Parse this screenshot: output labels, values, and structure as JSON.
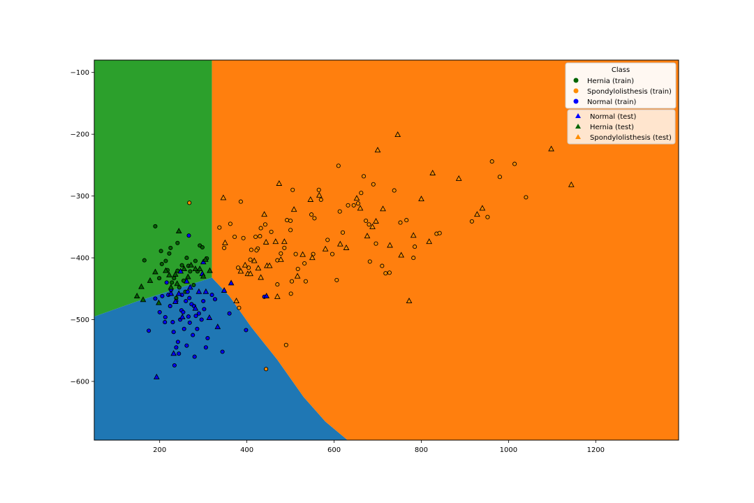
{
  "colors": {
    "normal": "#1f77b4",
    "hernia": "#2ca02c",
    "spondylolisthesis": "#ff7f0e",
    "marker_hernia": "#006400",
    "marker_spondy": "#ff8c00",
    "marker_normal": "#0000ff"
  },
  "chart_data": {
    "type": "scatter",
    "title": "",
    "xlabel": "",
    "ylabel": "",
    "xlim": [
      50,
      1390
    ],
    "ylim": [
      -695,
      -80
    ],
    "xticks": [
      200,
      400,
      600,
      800,
      1000,
      1200
    ],
    "yticks": [
      -100,
      -200,
      -300,
      -400,
      -500,
      -600
    ],
    "grid": false,
    "legend_placement": "top-right",
    "legend_title": "Class",
    "legend_train": [
      "Hernia (train)",
      "Spondylolisthesis (train)",
      "Normal (train)"
    ],
    "legend_test": [
      "Normal (test)",
      "Hernia (test)",
      "Spondylolisthesis (test)"
    ],
    "decision_regions": [
      {
        "class": "Hernia",
        "polygon": [
          [
            50,
            -80
          ],
          [
            320,
            -80
          ],
          [
            320,
            -432
          ],
          [
            150,
            -470
          ],
          [
            50,
            -495
          ]
        ]
      },
      {
        "class": "Normal",
        "polygon": [
          [
            50,
            -495
          ],
          [
            150,
            -470
          ],
          [
            320,
            -432
          ],
          [
            360,
            -462
          ],
          [
            410,
            -512
          ],
          [
            470,
            -565
          ],
          [
            530,
            -625
          ],
          [
            580,
            -665
          ],
          [
            631,
            -695
          ],
          [
            50,
            -695
          ]
        ]
      },
      {
        "class": "Spondylolisthesis",
        "polygon": [
          [
            320,
            -80
          ],
          [
            1390,
            -80
          ],
          [
            1390,
            -695
          ],
          [
            631,
            -695
          ],
          [
            580,
            -665
          ],
          [
            530,
            -625
          ],
          [
            470,
            -565
          ],
          [
            410,
            -512
          ],
          [
            360,
            -462
          ],
          [
            320,
            -432
          ]
        ]
      }
    ],
    "series": [
      {
        "name": "Hernia (train)",
        "marker": "circle",
        "points": [
          [
            190,
            -349
          ],
          [
            165,
            -404
          ],
          [
            203,
            -389
          ],
          [
            214,
            -405
          ],
          [
            225,
            -384
          ],
          [
            241,
            -376
          ],
          [
            262,
            -400
          ],
          [
            282,
            -405
          ],
          [
            292,
            -380
          ],
          [
            218,
            -420
          ],
          [
            233,
            -433
          ],
          [
            251,
            -412
          ],
          [
            270,
            -422
          ],
          [
            245,
            -448
          ],
          [
            228,
            -440
          ],
          [
            205,
            -410
          ],
          [
            298,
            -383
          ],
          [
            278,
            -444
          ],
          [
            259,
            -455
          ],
          [
            222,
            -393
          ],
          [
            241,
            -421
          ],
          [
            308,
            -401
          ],
          [
            287,
            -422
          ],
          [
            199,
            -433
          ],
          [
            238,
            -465
          ],
          [
            255,
            -437
          ],
          [
            266,
            -413
          ]
        ]
      },
      {
        "name": "Spondylolisthesis (train)",
        "marker": "circle",
        "points": [
          [
            268,
            -311
          ],
          [
            337,
            -351
          ],
          [
            348,
            -384
          ],
          [
            362,
            -345
          ],
          [
            386,
            -309
          ],
          [
            392,
            -368
          ],
          [
            372,
            -366
          ],
          [
            410,
            -387
          ],
          [
            425,
            -385
          ],
          [
            432,
            -352
          ],
          [
            442,
            -346
          ],
          [
            456,
            -358
          ],
          [
            470,
            -404
          ],
          [
            478,
            -393
          ],
          [
            486,
            -384
          ],
          [
            492,
            -339
          ],
          [
            500,
            -340
          ],
          [
            505,
            -290
          ],
          [
            517,
            -418
          ],
          [
            532,
            -409
          ],
          [
            548,
            -330
          ],
          [
            555,
            -336
          ],
          [
            565,
            -290
          ],
          [
            570,
            -306
          ],
          [
            585,
            -371
          ],
          [
            596,
            -394
          ],
          [
            610,
            -251
          ],
          [
            613,
            -325
          ],
          [
            620,
            -359
          ],
          [
            632,
            -315
          ],
          [
            645,
            -315
          ],
          [
            655,
            -312
          ],
          [
            662,
            -295
          ],
          [
            668,
            -268
          ],
          [
            673,
            -340
          ],
          [
            680,
            -346
          ],
          [
            690,
            -281
          ],
          [
            696,
            -377
          ],
          [
            710,
            -413
          ],
          [
            718,
            -425
          ],
          [
            727,
            -424
          ],
          [
            738,
            -291
          ],
          [
            752,
            -343
          ],
          [
            766,
            -339
          ],
          [
            782,
            -400
          ],
          [
            785,
            -382
          ],
          [
            835,
            -361
          ],
          [
            842,
            -360
          ],
          [
            916,
            -341
          ],
          [
            952,
            -334
          ],
          [
            962,
            -244
          ],
          [
            980,
            -269
          ],
          [
            1014,
            -248
          ],
          [
            1040,
            -302
          ],
          [
            490,
            -541
          ],
          [
            444,
            -580
          ],
          [
            382,
            -481
          ],
          [
            470,
            -443
          ],
          [
            501,
            -458
          ],
          [
            503,
            -438
          ],
          [
            535,
            -438
          ],
          [
            552,
            -394
          ],
          [
            404,
            -416
          ],
          [
            408,
            -403
          ],
          [
            380,
            -416
          ],
          [
            422,
            -388
          ],
          [
            430,
            -365
          ],
          [
            420,
            -366
          ],
          [
            606,
            -436
          ],
          [
            682,
            -406
          ],
          [
            500,
            -355
          ],
          [
            512,
            -394
          ]
        ]
      },
      {
        "name": "Normal (train)",
        "marker": "circle",
        "points": [
          [
            175,
            -518
          ],
          [
            190,
            -466
          ],
          [
            200,
            -488
          ],
          [
            206,
            -462
          ],
          [
            213,
            -496
          ],
          [
            220,
            -460
          ],
          [
            224,
            -478
          ],
          [
            230,
            -504
          ],
          [
            234,
            -574
          ],
          [
            238,
            -545
          ],
          [
            242,
            -536
          ],
          [
            247,
            -500
          ],
          [
            250,
            -485
          ],
          [
            256,
            -515
          ],
          [
            260,
            -470
          ],
          [
            264,
            -455
          ],
          [
            266,
            -495
          ],
          [
            269,
            -505
          ],
          [
            273,
            -475
          ],
          [
            276,
            -525
          ],
          [
            280,
            -560
          ],
          [
            286,
            -515
          ],
          [
            290,
            -490
          ],
          [
            296,
            -500
          ],
          [
            300,
            -470
          ],
          [
            306,
            -545
          ],
          [
            310,
            -530
          ],
          [
            320,
            -460
          ],
          [
            327,
            -467
          ],
          [
            344,
            -552
          ],
          [
            360,
            -490
          ],
          [
            398,
            -517
          ],
          [
            440,
            -463
          ],
          [
            232,
            -520
          ],
          [
            244,
            -555
          ],
          [
            251,
            -460
          ],
          [
            262,
            -542
          ],
          [
            279,
            -478
          ],
          [
            216,
            -440
          ],
          [
            226,
            -452
          ],
          [
            238,
            -470
          ],
          [
            254,
            -488
          ],
          [
            268,
            -465
          ],
          [
            283,
            -494
          ],
          [
            302,
            -483
          ],
          [
            267,
            -364
          ],
          [
            212,
            -504
          ]
        ]
      },
      {
        "name": "Normal (test)",
        "marker": "triangle",
        "points": [
          [
            193,
            -593
          ],
          [
            232,
            -555
          ],
          [
            226,
            -458
          ],
          [
            244,
            -458
          ],
          [
            248,
            -422
          ],
          [
            262,
            -438
          ],
          [
            270,
            -448
          ],
          [
            282,
            -482
          ],
          [
            290,
            -455
          ],
          [
            298,
            -426
          ],
          [
            306,
            -455
          ],
          [
            314,
            -497
          ],
          [
            333,
            -512
          ],
          [
            348,
            -453
          ],
          [
            364,
            -441
          ],
          [
            445,
            -462
          ],
          [
            236,
            -471
          ],
          [
            252,
            -496
          ],
          [
            300,
            -407
          ]
        ]
      },
      {
        "name": "Hernia (test)",
        "marker": "triangle",
        "points": [
          [
            148,
            -462
          ],
          [
            158,
            -447
          ],
          [
            162,
            -468
          ],
          [
            178,
            -437
          ],
          [
            190,
            -423
          ],
          [
            214,
            -421
          ],
          [
            222,
            -428
          ],
          [
            236,
            -427
          ],
          [
            244,
            -357
          ],
          [
            256,
            -418
          ],
          [
            265,
            -431
          ],
          [
            272,
            -412
          ],
          [
            282,
            -418
          ],
          [
            292,
            -418
          ],
          [
            300,
            -430
          ],
          [
            305,
            -403
          ],
          [
            315,
            -421
          ],
          [
            198,
            -473
          ],
          [
            226,
            -448
          ],
          [
            240,
            -442
          ]
        ]
      },
      {
        "name": "Spondylolisthesis (test)",
        "marker": "triangle",
        "points": [
          [
            346,
            -303
          ],
          [
            350,
            -376
          ],
          [
            376,
            -470
          ],
          [
            386,
            -422
          ],
          [
            396,
            -412
          ],
          [
            402,
            -426
          ],
          [
            408,
            -426
          ],
          [
            417,
            -405
          ],
          [
            426,
            -417
          ],
          [
            440,
            -330
          ],
          [
            444,
            -375
          ],
          [
            446,
            -413
          ],
          [
            452,
            -413
          ],
          [
            466,
            -374
          ],
          [
            474,
            -280
          ],
          [
            478,
            -403
          ],
          [
            486,
            -374
          ],
          [
            508,
            -322
          ],
          [
            528,
            -395
          ],
          [
            546,
            -306
          ],
          [
            550,
            -400
          ],
          [
            566,
            -299
          ],
          [
            580,
            -386
          ],
          [
            614,
            -378
          ],
          [
            628,
            -384
          ],
          [
            652,
            -304
          ],
          [
            660,
            -320
          ],
          [
            676,
            -365
          ],
          [
            688,
            -350
          ],
          [
            700,
            -226
          ],
          [
            728,
            -380
          ],
          [
            746,
            -201
          ],
          [
            754,
            -396
          ],
          [
            782,
            -364
          ],
          [
            800,
            -305
          ],
          [
            818,
            -374
          ],
          [
            826,
            -263
          ],
          [
            886,
            -272
          ],
          [
            928,
            -330
          ],
          [
            940,
            -320
          ],
          [
            1098,
            -224
          ],
          [
            1144,
            -282
          ],
          [
            772,
            -470
          ],
          [
            696,
            -341
          ],
          [
            712,
            -321
          ],
          [
            470,
            -463
          ],
          [
            432,
            -432
          ],
          [
            516,
            -430
          ]
        ]
      }
    ]
  }
}
